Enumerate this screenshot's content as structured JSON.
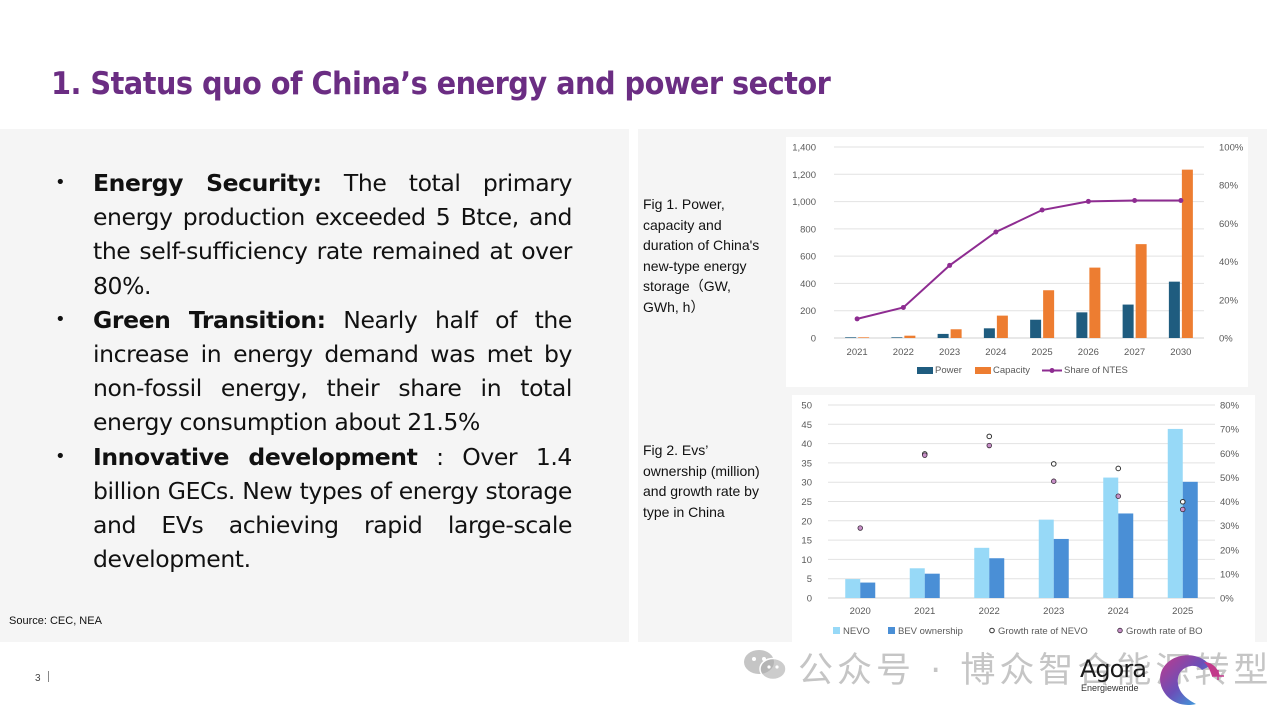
{
  "slide": {
    "title": "1. Status quo of China’s energy and power sector",
    "page_number": "3",
    "source": "Source: CEC, NEA",
    "bullets": [
      {
        "heading": "Energy Security:",
        "text": " The total primary energy production exceeded 5 Btce, and the self-sufficiency rate remained at over 80%."
      },
      {
        "heading": "Green Transition:",
        "text": "  Nearly half of the increase in energy demand was met by non-fossil energy, their share in total energy consumption about 21.5%"
      },
      {
        "heading": "Innovative development",
        "text": " : Over 1.4 billion GECs. New types of energy storage and EVs achieving rapid large-scale development."
      }
    ],
    "fig1_caption": "Fig 1. Power, capacity and duration of China's new-type energy storage（GW, GWh, h）",
    "fig2_caption": "Fig 2. Evs’ ownership (million) and growth rate by type in China",
    "watermark": "公众号 · 博众智合能源转型",
    "logo": {
      "name": "Agora",
      "subtitle": "Energiewende"
    }
  },
  "colors": {
    "title": "#6b2d83",
    "power": "#1f5c7f",
    "capacity": "#ed7d31",
    "share": "#8e2c91",
    "nevo": "#97d9f7",
    "bev": "#4a8fd6",
    "growth_bo": "#c890c8"
  },
  "chart_data": [
    {
      "type": "bar",
      "title": "Fig 1. Power, capacity and duration of China's new-type energy storage (GW, GWh, h)",
      "categories": [
        "2021",
        "2022",
        "2023",
        "2024",
        "2025",
        "2026",
        "2027",
        "2030"
      ],
      "series": [
        {
          "name": "Power",
          "type": "bar",
          "axis": "left",
          "values": [
            5,
            5,
            30,
            71,
            134,
            188,
            245,
            413
          ]
        },
        {
          "name": "Capacity",
          "type": "bar",
          "axis": "left",
          "values": [
            5,
            17,
            64,
            164,
            350,
            516,
            688,
            1234
          ]
        },
        {
          "name": "Share of NTES",
          "type": "line",
          "axis": "right",
          "values": [
            10,
            16,
            38,
            55.5,
            67,
            71.5,
            72,
            72
          ]
        }
      ],
      "ylim": [
        0,
        1400
      ],
      "yticks": [
        "0",
        "200",
        "400",
        "600",
        "800",
        "1,000",
        "1,200",
        "1,400"
      ],
      "y2lim": [
        0,
        100
      ],
      "y2ticks": [
        "0%",
        "20%",
        "40%",
        "60%",
        "80%",
        "100%"
      ],
      "grid": true,
      "legend": "bottom"
    },
    {
      "type": "bar",
      "title": "Fig 2. Evs’ ownership (million) and growth rate by type in China",
      "categories": [
        "2020",
        "2021",
        "2022",
        "2023",
        "2024",
        "2025"
      ],
      "series": [
        {
          "name": "NEVO",
          "type": "bar",
          "axis": "left",
          "values": [
            4.9,
            7.7,
            13.0,
            20.3,
            31.2,
            43.8
          ]
        },
        {
          "name": "BEV ownership",
          "type": "bar",
          "axis": "left",
          "values": [
            4.0,
            6.3,
            10.3,
            15.3,
            21.9,
            30.1
          ]
        },
        {
          "name": "Growth rate of NEVO",
          "type": "scatter",
          "axis": "right",
          "values": [
            null,
            59.7,
            67,
            55.6,
            53.7,
            39.9
          ]
        },
        {
          "name": "Growth rate of BO",
          "type": "scatter",
          "axis": "right",
          "values": [
            29,
            59.2,
            63.2,
            48.4,
            42.2,
            36.7
          ]
        }
      ],
      "ylim": [
        0,
        50
      ],
      "yticks": [
        "0",
        "5",
        "10",
        "15",
        "20",
        "25",
        "30",
        "35",
        "40",
        "45",
        "50"
      ],
      "y2lim": [
        0,
        80
      ],
      "y2ticks": [
        "0%",
        "10%",
        "20%",
        "30%",
        "40%",
        "50%",
        "60%",
        "70%",
        "80%"
      ],
      "grid": true,
      "legend": "bottom"
    }
  ]
}
